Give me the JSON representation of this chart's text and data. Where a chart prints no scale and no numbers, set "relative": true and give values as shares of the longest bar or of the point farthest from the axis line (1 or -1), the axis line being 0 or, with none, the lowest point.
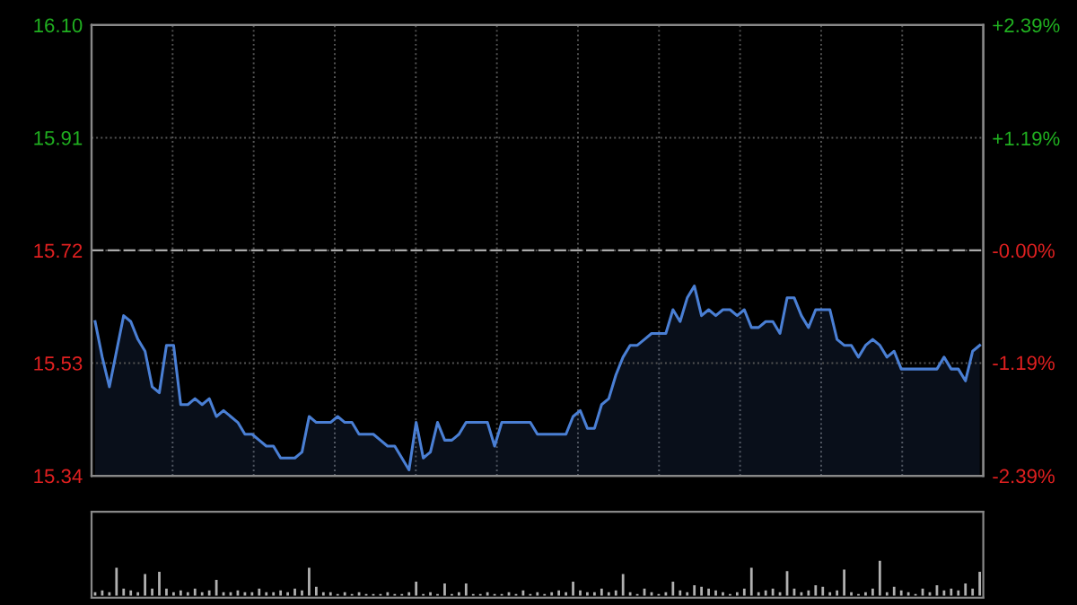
{
  "chart_data": [
    {
      "type": "area",
      "categories": [
        null,
        null,
        null,
        null,
        null,
        null,
        null,
        null,
        null,
        null,
        null,
        null,
        null,
        null,
        null,
        null,
        null,
        null,
        null,
        null,
        null,
        null,
        null,
        null,
        null,
        null,
        null,
        null,
        null,
        null,
        null,
        null,
        null,
        null,
        null,
        null,
        null,
        null,
        null,
        null,
        null,
        null,
        null,
        null,
        null,
        null,
        null,
        null,
        null,
        null,
        null,
        null,
        null,
        null,
        null,
        null,
        null,
        null,
        null,
        null,
        null,
        null,
        null,
        null,
        null,
        null,
        null,
        null,
        null,
        null,
        null,
        null,
        null,
        null,
        null,
        null,
        null,
        null,
        null,
        null,
        null,
        null,
        null,
        null,
        null,
        null,
        null,
        null,
        null,
        null,
        null,
        null,
        null,
        null,
        null,
        null,
        null,
        null,
        null,
        null,
        null,
        null,
        null,
        null,
        null,
        null,
        null,
        null,
        null,
        null,
        null,
        null,
        null,
        null,
        null,
        null,
        null,
        null,
        null,
        null,
        null,
        null,
        null,
        null,
        null
      ],
      "series": [
        {
          "color": "#4a7fd4",
          "values": [
            15.6,
            15.54,
            15.49,
            15.55,
            15.61,
            15.6,
            15.57,
            15.55,
            15.49,
            15.48,
            15.56,
            15.56,
            15.46,
            15.46,
            15.47,
            15.46,
            15.47,
            15.44,
            15.45,
            15.44,
            15.43,
            15.41,
            15.41,
            15.4,
            15.39,
            15.39,
            15.37,
            15.37,
            15.37,
            15.38,
            15.44,
            15.43,
            15.43,
            15.43,
            15.44,
            15.43,
            15.43,
            15.41,
            15.41,
            15.41,
            15.4,
            15.39,
            15.39,
            15.37,
            15.35,
            15.43,
            15.37,
            15.38,
            15.43,
            15.4,
            15.4,
            15.41,
            15.43,
            15.43,
            15.43,
            15.43,
            15.39,
            15.43,
            15.43,
            15.43,
            15.43,
            15.43,
            15.41,
            15.41,
            15.41,
            15.41,
            15.41,
            15.44,
            15.45,
            15.42,
            15.42,
            15.46,
            15.47,
            15.51,
            15.54,
            15.56,
            15.56,
            15.57,
            15.58,
            15.58,
            15.58,
            15.62,
            15.6,
            15.64,
            15.66,
            15.61,
            15.62,
            15.61,
            15.62,
            15.62,
            15.61,
            15.62,
            15.59,
            15.59,
            15.6,
            15.6,
            15.58,
            15.64,
            15.64,
            15.61,
            15.59,
            15.62,
            15.62,
            15.62,
            15.57,
            15.56,
            15.56,
            15.54,
            15.56,
            15.57,
            15.56,
            15.54,
            15.55,
            15.52,
            15.52,
            15.52,
            15.52,
            15.52,
            15.52,
            15.54,
            15.52,
            15.52,
            15.5,
            15.55,
            15.56
          ]
        }
      ],
      "ylim": [
        15.34,
        16.1
      ],
      "yticks": [
        15.34,
        15.53,
        15.72,
        15.91,
        {
          "value": 16.1,
          "label": "16.10"
        }
      ],
      "y2lim": [
        -2.39,
        2.39
      ],
      "y2ticks": [
        {
          "value": -2.39,
          "label": "-2.39%"
        },
        {
          "value": -1.19,
          "label": "-1.19%"
        },
        {
          "value": 0,
          "label": "-0.00%"
        },
        {
          "value": 1.19,
          "label": "+1.19%"
        },
        {
          "value": 2.39,
          "label": "+2.39%"
        }
      ],
      "ref_lines": [
        {
          "axis": "y",
          "value": 15.72,
          "color": "#aaaaaa",
          "line_style": "dashed"
        }
      ],
      "grid": true,
      "legend": false
    },
    {
      "type": "bar",
      "relative": true,
      "color": "#b0b0b0",
      "categories": [
        null,
        null,
        null,
        null,
        null,
        null,
        null,
        null,
        null,
        null,
        null,
        null,
        null,
        null,
        null,
        null,
        null,
        null,
        null,
        null,
        null,
        null,
        null,
        null,
        null,
        null,
        null,
        null,
        null,
        null,
        null,
        null,
        null,
        null,
        null,
        null,
        null,
        null,
        null,
        null,
        null,
        null,
        null,
        null,
        null,
        null,
        null,
        null,
        null,
        null,
        null,
        null,
        null,
        null,
        null,
        null,
        null,
        null,
        null,
        null,
        null,
        null,
        null,
        null,
        null,
        null,
        null,
        null,
        null,
        null,
        null,
        null,
        null,
        null,
        null,
        null,
        null,
        null,
        null,
        null,
        null,
        null,
        null,
        null,
        null,
        null,
        null,
        null,
        null,
        null,
        null,
        null,
        null,
        null,
        null,
        null,
        null,
        null,
        null,
        null,
        null,
        null,
        null,
        null,
        null,
        null,
        null,
        null,
        null,
        null,
        null,
        null,
        null,
        null,
        null,
        null,
        null,
        null,
        null,
        null,
        null,
        null,
        null,
        null,
        null
      ],
      "values": [
        0.1,
        0.15,
        0.1,
        0.8,
        0.2,
        0.15,
        0.1,
        0.62,
        0.2,
        0.68,
        0.2,
        0.1,
        0.15,
        0.1,
        0.2,
        0.1,
        0.15,
        0.45,
        0.1,
        0.1,
        0.15,
        0.1,
        0.1,
        0.2,
        0.1,
        0.1,
        0.15,
        0.1,
        0.2,
        0.15,
        0.8,
        0.25,
        0.1,
        0.1,
        0.05,
        0.1,
        0.05,
        0.1,
        0.05,
        0.05,
        0.05,
        0.1,
        0.05,
        0.05,
        0.1,
        0.4,
        0.05,
        0.1,
        0.05,
        0.35,
        0.05,
        0.1,
        0.35,
        0.05,
        0.05,
        0.1,
        0.05,
        0.05,
        0.1,
        0.05,
        0.15,
        0.05,
        0.1,
        0.05,
        0.1,
        0.15,
        0.1,
        0.4,
        0.15,
        0.1,
        0.1,
        0.2,
        0.1,
        0.15,
        0.62,
        0.1,
        0.05,
        0.2,
        0.1,
        0.05,
        0.1,
        0.4,
        0.15,
        0.1,
        0.3,
        0.25,
        0.2,
        0.15,
        0.1,
        0.05,
        0.1,
        0.2,
        0.8,
        0.1,
        0.15,
        0.2,
        0.1,
        0.7,
        0.2,
        0.1,
        0.15,
        0.3,
        0.25,
        0.1,
        0.15,
        0.75,
        0.1,
        0.05,
        0.1,
        0.2,
        1,
        0.1,
        0.25,
        0.15,
        0.1,
        0.05,
        0.2,
        0.1,
        0.3,
        0.15,
        0.2,
        0.15,
        0.35,
        0.2,
        0.68
      ]
    }
  ]
}
